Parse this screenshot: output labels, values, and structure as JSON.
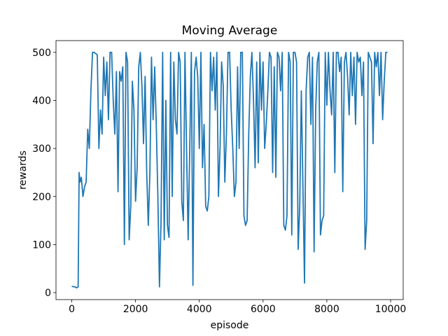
{
  "chart_data": {
    "type": "line",
    "title": "Moving Average",
    "x_label": "episode",
    "y_label": "rewards",
    "color": "#1f77b4",
    "x": [
      0,
      100,
      150,
      200,
      230,
      260,
      300,
      350,
      400,
      450,
      500,
      550,
      600,
      650,
      700,
      800,
      850,
      900,
      950,
      1000,
      1050,
      1100,
      1150,
      1200,
      1250,
      1300,
      1350,
      1400,
      1450,
      1500,
      1550,
      1600,
      1650,
      1700,
      1750,
      1800,
      1850,
      1900,
      1950,
      2000,
      2050,
      2100,
      2150,
      2200,
      2250,
      2300,
      2350,
      2400,
      2450,
      2500,
      2550,
      2600,
      2650,
      2700,
      2750,
      2800,
      2850,
      2900,
      2950,
      3000,
      3050,
      3100,
      3150,
      3200,
      3250,
      3300,
      3350,
      3400,
      3450,
      3500,
      3550,
      3600,
      3650,
      3700,
      3750,
      3800,
      3850,
      3900,
      3950,
      4000,
      4050,
      4100,
      4150,
      4200,
      4250,
      4300,
      4350,
      4400,
      4450,
      4500,
      4550,
      4600,
      4650,
      4700,
      4750,
      4800,
      4850,
      4900,
      4950,
      5000,
      5050,
      5100,
      5150,
      5200,
      5250,
      5300,
      5350,
      5400,
      5450,
      5500,
      5550,
      5600,
      5650,
      5700,
      5750,
      5800,
      5850,
      5900,
      5950,
      6000,
      6050,
      6100,
      6150,
      6200,
      6250,
      6300,
      6350,
      6400,
      6450,
      6500,
      6550,
      6600,
      6650,
      6700,
      6750,
      6800,
      6850,
      6900,
      6950,
      7000,
      7050,
      7100,
      7150,
      7200,
      7250,
      7300,
      7350,
      7400,
      7450,
      7500,
      7550,
      7600,
      7650,
      7700,
      7750,
      7800,
      7850,
      7900,
      7950,
      8000,
      8050,
      8100,
      8150,
      8200,
      8250,
      8300,
      8350,
      8400,
      8450,
      8500,
      8550,
      8600,
      8650,
      8700,
      8750,
      8800,
      8850,
      8900,
      8950,
      9000,
      9050,
      9100,
      9150,
      9200,
      9250,
      9300,
      9350,
      9400,
      9450,
      9500,
      9550,
      9600,
      9650,
      9700,
      9750,
      9800,
      9850,
      9900
    ],
    "values": [
      13,
      12,
      10,
      12,
      250,
      230,
      240,
      200,
      220,
      230,
      340,
      300,
      420,
      500,
      500,
      495,
      300,
      380,
      330,
      490,
      410,
      480,
      360,
      500,
      500,
      400,
      330,
      460,
      210,
      460,
      440,
      470,
      100,
      500,
      480,
      110,
      180,
      440,
      380,
      190,
      260,
      470,
      500,
      430,
      310,
      450,
      250,
      140,
      250,
      490,
      360,
      470,
      350,
      200,
      12,
      150,
      500,
      110,
      400,
      140,
      115,
      500,
      200,
      480,
      360,
      330,
      500,
      480,
      190,
      150,
      500,
      300,
      110,
      300,
      500,
      15,
      460,
      490,
      450,
      300,
      500,
      260,
      350,
      180,
      170,
      200,
      500,
      420,
      490,
      380,
      500,
      200,
      300,
      480,
      430,
      230,
      330,
      500,
      500,
      380,
      300,
      200,
      230,
      470,
      300,
      500,
      500,
      160,
      140,
      150,
      330,
      450,
      500,
      400,
      260,
      480,
      270,
      500,
      380,
      480,
      300,
      350,
      420,
      500,
      490,
      250,
      470,
      240,
      500,
      490,
      420,
      500,
      140,
      130,
      160,
      500,
      480,
      120,
      500,
      500,
      480,
      90,
      180,
      420,
      220,
      20,
      420,
      490,
      500,
      350,
      490,
      85,
      380,
      480,
      500,
      120,
      150,
      160,
      500,
      390,
      500,
      420,
      370,
      500,
      250,
      500,
      500,
      460,
      490,
      210,
      480,
      500,
      450,
      370,
      500,
      410,
      490,
      350,
      500,
      480,
      490,
      410,
      480,
      90,
      150,
      500,
      490,
      480,
      310,
      500,
      470,
      500,
      410,
      500,
      360,
      440,
      500,
      500
    ],
    "xlim": [
      -495,
      10395
    ],
    "ylim": [
      -14.5,
      524.5
    ],
    "xticks": [
      0,
      2000,
      4000,
      6000,
      8000,
      10000
    ],
    "yticks": [
      0,
      100,
      200,
      300,
      400,
      500
    ]
  }
}
